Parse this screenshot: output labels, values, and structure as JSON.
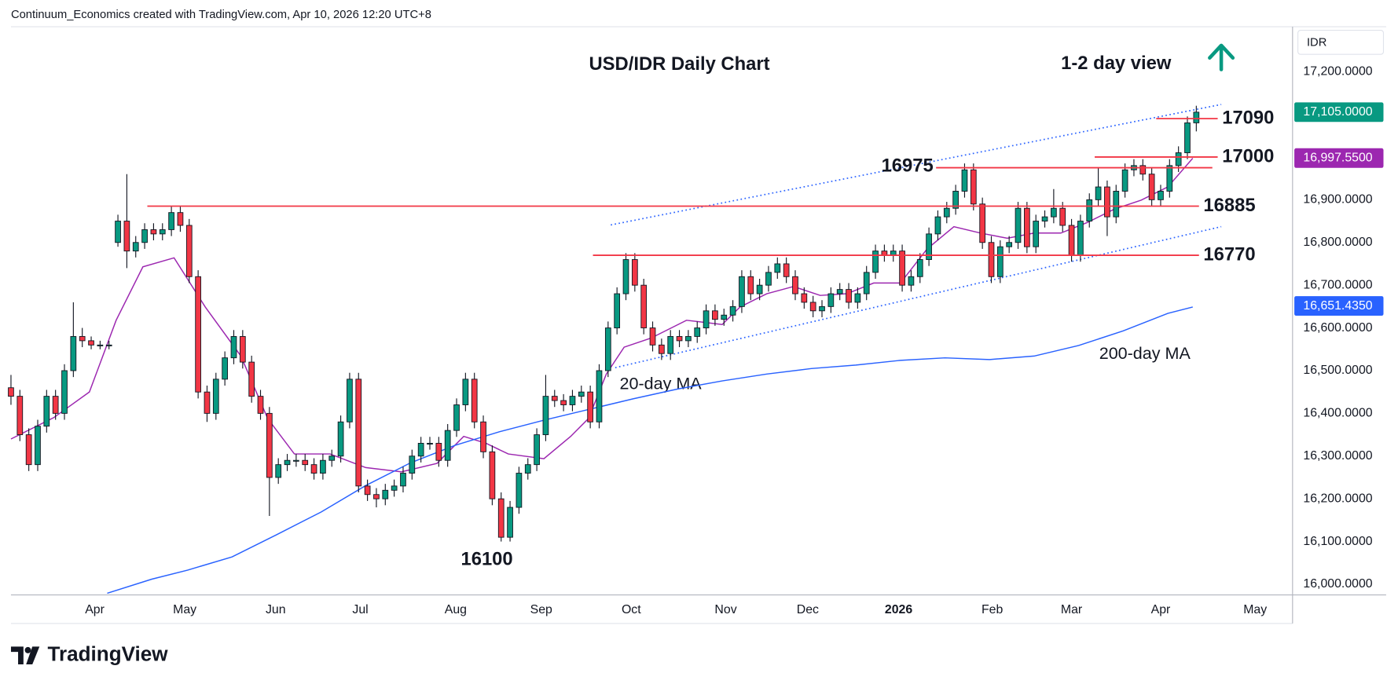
{
  "header": {
    "credit": "Continuum_Economics created with TradingView.com, Apr 10, 2026 12:20 UTC+8"
  },
  "brand": "TradingView",
  "chart_data": {
    "type": "candlestick",
    "title": "USD/IDR Daily Chart",
    "subtitle": "1-2 day view",
    "currency": "IDR",
    "up_color": "#089981",
    "down_color": "#f23645",
    "level_color": "#f23645",
    "xlim": [
      0,
      143.8
    ],
    "xticks": [
      {
        "value": 9.4,
        "label": "Apr"
      },
      {
        "value": 19.5,
        "label": "May"
      },
      {
        "value": 29.7,
        "label": "Jun"
      },
      {
        "value": 39.2,
        "label": "Jul"
      },
      {
        "value": 49.9,
        "label": "Aug"
      },
      {
        "value": 59.5,
        "label": "Sep"
      },
      {
        "value": 69.6,
        "label": "Oct"
      },
      {
        "value": 80.2,
        "label": "Nov"
      },
      {
        "value": 89.4,
        "label": "Dec"
      },
      {
        "value": 99.6,
        "label": "2026"
      },
      {
        "value": 110.1,
        "label": "Feb"
      },
      {
        "value": 119,
        "label": "Mar"
      },
      {
        "value": 129,
        "label": "Apr"
      },
      {
        "value": 139.6,
        "label": "May"
      }
    ],
    "ylim": [
      15975,
      17305
    ],
    "yticks": [
      {
        "value": 16000,
        "label": "16,000.0000"
      },
      {
        "value": 16100,
        "label": "16,100.0000"
      },
      {
        "value": 16200,
        "label": "16,200.0000"
      },
      {
        "value": 16300,
        "label": "16,300.0000"
      },
      {
        "value": 16400,
        "label": "16,400.0000"
      },
      {
        "value": 16500,
        "label": "16,500.0000"
      },
      {
        "value": 16600,
        "label": "16,600.0000"
      },
      {
        "value": 16700,
        "label": "16,700.0000"
      },
      {
        "value": 16800,
        "label": "16,800.0000"
      },
      {
        "value": 16900,
        "label": "16,900.0000"
      },
      {
        "value": 17200,
        "label": "17,200.0000"
      }
    ],
    "price_labels": [
      {
        "value": 17105,
        "label": "17,105.0000",
        "color": "#089981"
      },
      {
        "value": 16997.55,
        "label": "16,997.5500",
        "color": "#9c27b0"
      },
      {
        "value": 16651.435,
        "label": "16,651.4350",
        "color": "#2962ff"
      }
    ],
    "ohlc": [
      [
        16460,
        16490,
        16420,
        16440
      ],
      [
        16440,
        16455,
        16335,
        16350
      ],
      [
        16350,
        16365,
        16265,
        16280
      ],
      [
        16280,
        16385,
        16265,
        16370
      ],
      [
        16370,
        16455,
        16355,
        16440
      ],
      [
        16440,
        16455,
        16385,
        16400
      ],
      [
        16400,
        16515,
        16385,
        16500
      ],
      [
        16500,
        16660,
        16485,
        16580
      ],
      [
        16580,
        16600,
        16555,
        16570
      ],
      [
        16570,
        16580,
        16550,
        16560
      ],
      [
        16560,
        16570,
        16550,
        16560
      ],
      [
        16560,
        16570,
        16550,
        16560
      ],
      [
        16800,
        16865,
        16790,
        16850
      ],
      [
        16850,
        16960,
        16740,
        16780
      ],
      [
        16780,
        16815,
        16765,
        16800
      ],
      [
        16800,
        16845,
        16785,
        16830
      ],
      [
        16830,
        16845,
        16805,
        16820
      ],
      [
        16820,
        16845,
        16805,
        16830
      ],
      [
        16830,
        16885,
        16815,
        16870
      ],
      [
        16870,
        16885,
        16825,
        16840
      ],
      [
        16840,
        16855,
        16705,
        16720
      ],
      [
        16720,
        16735,
        16435,
        16450
      ],
      [
        16450,
        16465,
        16380,
        16400
      ],
      [
        16400,
        16495,
        16385,
        16480
      ],
      [
        16480,
        16545,
        16465,
        16530
      ],
      [
        16530,
        16595,
        16515,
        16580
      ],
      [
        16580,
        16595,
        16505,
        16520
      ],
      [
        16520,
        16535,
        16425,
        16440
      ],
      [
        16440,
        16455,
        16385,
        16400
      ],
      [
        16400,
        16415,
        16160,
        16250
      ],
      [
        16250,
        16295,
        16235,
        16280
      ],
      [
        16280,
        16305,
        16265,
        16290
      ],
      [
        16290,
        16305,
        16275,
        16290
      ],
      [
        16290,
        16305,
        16265,
        16280
      ],
      [
        16280,
        16295,
        16245,
        16260
      ],
      [
        16260,
        16305,
        16245,
        16290
      ],
      [
        16290,
        16315,
        16275,
        16300
      ],
      [
        16300,
        16395,
        16285,
        16380
      ],
      [
        16380,
        16495,
        16365,
        16480
      ],
      [
        16480,
        16495,
        16215,
        16230
      ],
      [
        16230,
        16245,
        16195,
        16210
      ],
      [
        16210,
        16225,
        16180,
        16200
      ],
      [
        16200,
        16235,
        16185,
        16220
      ],
      [
        16220,
        16245,
        16205,
        16230
      ],
      [
        16230,
        16275,
        16215,
        16260
      ],
      [
        16260,
        16315,
        16245,
        16300
      ],
      [
        16300,
        16345,
        16285,
        16330
      ],
      [
        16330,
        16345,
        16315,
        16330
      ],
      [
        16330,
        16345,
        16275,
        16290
      ],
      [
        16290,
        16375,
        16275,
        16360
      ],
      [
        16360,
        16435,
        16345,
        16420
      ],
      [
        16420,
        16495,
        16405,
        16480
      ],
      [
        16480,
        16495,
        16365,
        16380
      ],
      [
        16380,
        16395,
        16295,
        16310
      ],
      [
        16310,
        16325,
        16185,
        16200
      ],
      [
        16200,
        16215,
        16100,
        16110
      ],
      [
        16110,
        16195,
        16100,
        16180
      ],
      [
        16180,
        16275,
        16165,
        16260
      ],
      [
        16260,
        16295,
        16245,
        16280
      ],
      [
        16280,
        16365,
        16265,
        16350
      ],
      [
        16350,
        16490,
        16335,
        16440
      ],
      [
        16440,
        16455,
        16415,
        16430
      ],
      [
        16430,
        16445,
        16405,
        16420
      ],
      [
        16420,
        16455,
        16405,
        16440
      ],
      [
        16440,
        16465,
        16425,
        16450
      ],
      [
        16450,
        16465,
        16365,
        16380
      ],
      [
        16380,
        16515,
        16365,
        16500
      ],
      [
        16500,
        16615,
        16485,
        16600
      ],
      [
        16600,
        16695,
        16585,
        16680
      ],
      [
        16680,
        16775,
        16665,
        16760
      ],
      [
        16760,
        16775,
        16685,
        16700
      ],
      [
        16700,
        16715,
        16585,
        16600
      ],
      [
        16600,
        16615,
        16545,
        16560
      ],
      [
        16560,
        16575,
        16525,
        16540
      ],
      [
        16540,
        16595,
        16525,
        16580
      ],
      [
        16580,
        16595,
        16555,
        16570
      ],
      [
        16570,
        16595,
        16555,
        16580
      ],
      [
        16580,
        16615,
        16565,
        16600
      ],
      [
        16600,
        16655,
        16585,
        16640
      ],
      [
        16640,
        16655,
        16605,
        16620
      ],
      [
        16620,
        16645,
        16605,
        16630
      ],
      [
        16630,
        16665,
        16615,
        16650
      ],
      [
        16650,
        16735,
        16635,
        16720
      ],
      [
        16720,
        16735,
        16665,
        16680
      ],
      [
        16680,
        16715,
        16665,
        16700
      ],
      [
        16700,
        16745,
        16685,
        16730
      ],
      [
        16730,
        16765,
        16715,
        16750
      ],
      [
        16750,
        16765,
        16705,
        16720
      ],
      [
        16720,
        16735,
        16665,
        16680
      ],
      [
        16680,
        16695,
        16645,
        16660
      ],
      [
        16660,
        16675,
        16625,
        16640
      ],
      [
        16640,
        16665,
        16625,
        16650
      ],
      [
        16650,
        16695,
        16635,
        16680
      ],
      [
        16680,
        16705,
        16665,
        16690
      ],
      [
        16690,
        16705,
        16645,
        16660
      ],
      [
        16660,
        16695,
        16645,
        16680
      ],
      [
        16680,
        16745,
        16665,
        16730
      ],
      [
        16730,
        16795,
        16715,
        16780
      ],
      [
        16780,
        16795,
        16755,
        16770
      ],
      [
        16770,
        16795,
        16755,
        16780
      ],
      [
        16780,
        16795,
        16685,
        16700
      ],
      [
        16700,
        16735,
        16685,
        16720
      ],
      [
        16720,
        16775,
        16705,
        16760
      ],
      [
        16760,
        16835,
        16745,
        16820
      ],
      [
        16820,
        16875,
        16805,
        16860
      ],
      [
        16860,
        16895,
        16845,
        16880
      ],
      [
        16880,
        16935,
        16865,
        16920
      ],
      [
        16920,
        16985,
        16905,
        16970
      ],
      [
        16970,
        16985,
        16875,
        16890
      ],
      [
        16890,
        16905,
        16785,
        16800
      ],
      [
        16800,
        16815,
        16705,
        16720
      ],
      [
        16720,
        16805,
        16705,
        16790
      ],
      [
        16790,
        16815,
        16775,
        16800
      ],
      [
        16800,
        16895,
        16785,
        16880
      ],
      [
        16880,
        16895,
        16775,
        16790
      ],
      [
        16790,
        16865,
        16775,
        16850
      ],
      [
        16850,
        16875,
        16835,
        16860
      ],
      [
        16860,
        16925,
        16845,
        16880
      ],
      [
        16880,
        16895,
        16825,
        16840
      ],
      [
        16840,
        16855,
        16755,
        16770
      ],
      [
        16770,
        16865,
        16755,
        16850
      ],
      [
        16850,
        16915,
        16835,
        16900
      ],
      [
        16900,
        16975,
        16885,
        16930
      ],
      [
        16930,
        16945,
        16815,
        16860
      ],
      [
        16860,
        16935,
        16845,
        16920
      ],
      [
        16920,
        16985,
        16905,
        16970
      ],
      [
        16970,
        16995,
        16955,
        16980
      ],
      [
        16980,
        16995,
        16945,
        16960
      ],
      [
        16960,
        16975,
        16885,
        16900
      ],
      [
        16900,
        16935,
        16885,
        16920
      ],
      [
        16920,
        16995,
        16905,
        16980
      ],
      [
        16980,
        17025,
        16965,
        17010
      ],
      [
        17010,
        17095,
        16995,
        17080
      ],
      [
        17080,
        17120,
        17060,
        17105
      ]
    ],
    "lines": [
      {
        "name": "20-day MA",
        "color": "#9c27b0",
        "x": [
          0,
          4.8,
          8.8,
          11.8,
          14.8,
          18.3,
          21.8,
          25.8,
          28.8,
          31.8,
          35.8,
          39.8,
          43.8,
          47.8,
          50.8,
          53.3,
          55.8,
          59.8,
          62.8,
          64.8,
          66.8,
          68.8,
          71.8,
          75.8,
          79.8,
          81.8,
          84.8,
          87.8,
          90.8,
          93.8,
          96.8,
          99.8,
          102.8,
          105.8,
          108.8,
          111.8,
          114.8,
          117.8,
          120.8,
          123.8,
          126.8,
          129.8,
          132.6
        ],
        "values": [
          16340,
          16390,
          16450,
          16618,
          16743,
          16764,
          16649,
          16534,
          16388,
          16305,
          16305,
          16273,
          16263,
          16283,
          16346,
          16330,
          16305,
          16294,
          16346,
          16388,
          16492,
          16555,
          16576,
          16618,
          16608,
          16649,
          16680,
          16697,
          16676,
          16680,
          16705,
          16705,
          16785,
          16837,
          16822,
          16810,
          16822,
          16822,
          16847,
          16878,
          16899,
          16930,
          16997
        ]
      },
      {
        "name": "200-day MA",
        "color": "#2962ff",
        "x": [
          10.8,
          15.8,
          19.8,
          24.8,
          29.8,
          34.8,
          39.8,
          44.8,
          49.8,
          54.8,
          59.8,
          64.8,
          69.8,
          74.8,
          79.8,
          84.8,
          89.8,
          94.8,
          99.8,
          104.8,
          109.8,
          114.8,
          119.8,
          124.8,
          129.8,
          132.6
        ],
        "values": [
          15979,
          16012,
          16033,
          16064,
          16116,
          16169,
          16231,
          16284,
          16325,
          16357,
          16384,
          16409,
          16434,
          16457,
          16476,
          16492,
          16505,
          16513,
          16524,
          16530,
          16526,
          16534,
          16559,
          16593,
          16634,
          16649
        ]
      }
    ],
    "channel": [
      {
        "x": [
          67.3,
          135.8
        ],
        "values": [
          16841,
          17123
        ]
      },
      {
        "x": [
          67.8,
          135.8
        ],
        "values": [
          16507,
          16837
        ]
      }
    ],
    "levels": [
      {
        "value": 17090,
        "x": [
          128.5,
          135.4
        ],
        "label_side": "right"
      },
      {
        "value": 17000,
        "x": [
          121.6,
          135.4
        ],
        "label_side": "right"
      },
      {
        "value": 16975,
        "x": [
          103.8,
          134.8
        ],
        "label_side": "left"
      },
      {
        "value": 16885,
        "x": [
          15.3,
          133.3
        ],
        "label_side": "right"
      },
      {
        "value": 16770,
        "x": [
          65.3,
          133.3
        ],
        "label_side": "right"
      }
    ],
    "low_annotation": {
      "value": 16100,
      "x": 53.4
    }
  }
}
